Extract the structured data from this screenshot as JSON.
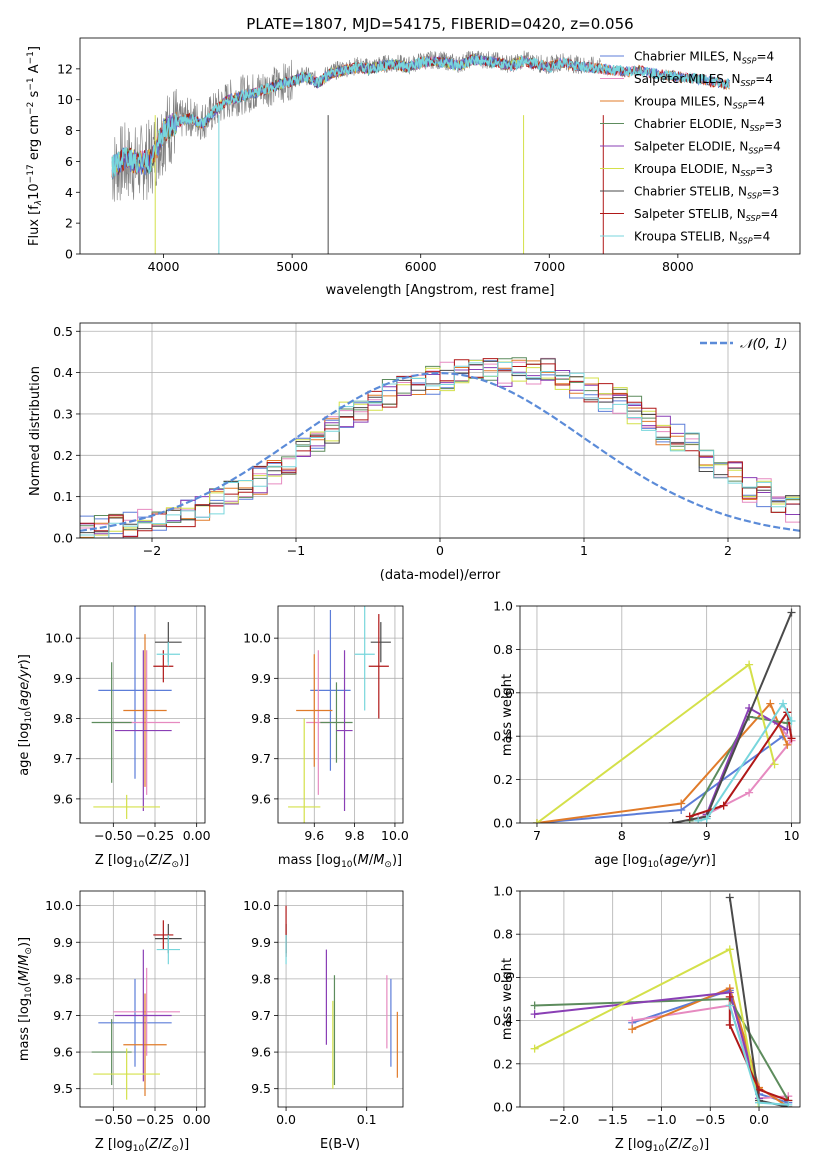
{
  "figure_title": "PLATE=1807, MJD=54175, FIBERID=0420, z=0.056",
  "model_colors": {
    "Chabrier MILES": "#5c7dd8",
    "Salpeter MILES": "#e68ac0",
    "Kroupa MILES": "#e07b2a",
    "Chabrier ELODIE": "#5d8c5d",
    "Salpeter ELODIE": "#8a3fb5",
    "Kroupa ELODIE": "#d4e04a",
    "Chabrier STELIB": "#4a4a4a",
    "Salpeter STELIB": "#b01818",
    "Kroupa STELIB": "#78d6dc"
  },
  "chart_data": [
    {
      "id": "spectrum",
      "type": "line",
      "xlabel": "wavelength [Angstrom, rest frame]",
      "ylabel": "Flux [f_λ10^-17 erg cm^-2 s^-1 A^-1]",
      "xlim": [
        3350,
        8950
      ],
      "ylim": [
        0,
        14
      ],
      "xticks": [
        4000,
        5000,
        6000,
        7000,
        8000
      ],
      "yticks": [
        0,
        2,
        4,
        6,
        8,
        10,
        12
      ],
      "grid": false,
      "legend_position": "right",
      "legend": [
        "Chabrier MILES, N_SSP=4",
        "Salpeter MILES, N_SSP=4",
        "Kroupa MILES, N_SSP=4",
        "Chabrier ELODIE, N_SSP=3",
        "Salpeter ELODIE, N_SSP=4",
        "Kroupa ELODIE, N_SSP=3",
        "Chabrier STELIB, N_SSP=3",
        "Salpeter STELIB, N_SSP=4",
        "Kroupa STELIB, N_SSP=4"
      ],
      "observed_spectrum": {
        "color": "#808080",
        "wavelength": [
          3600,
          3700,
          3800,
          3900,
          4000,
          4100,
          4200,
          4300,
          4400,
          4500,
          4600,
          4700,
          4800,
          4900,
          5000,
          5100,
          5200,
          5300,
          5400,
          5500,
          5600,
          5700,
          5800,
          5900,
          6000,
          6100,
          6200,
          6300,
          6400,
          6500,
          6600,
          6700,
          6800,
          6900,
          7000,
          7100,
          7200,
          7300,
          7400
        ],
        "flux": [
          5.5,
          6.0,
          5.8,
          6.2,
          7.8,
          8.6,
          8.9,
          8.6,
          9.3,
          10.0,
          10.3,
          10.5,
          10.8,
          11.0,
          11.3,
          11.6,
          11.2,
          11.8,
          12.0,
          12.2,
          12.1,
          12.3,
          12.4,
          12.2,
          12.5,
          12.6,
          12.5,
          12.3,
          12.7,
          12.6,
          12.5,
          12.3,
          12.6,
          12.4,
          12.2,
          12.5,
          12.3,
          12.2,
          12.2
        ]
      },
      "model_continuum": {
        "wavelength": [
          3600,
          3700,
          3800,
          3900,
          4000,
          4100,
          4200,
          4300,
          4400,
          4500,
          4600,
          4700,
          4800,
          4900,
          5000,
          5100,
          5200,
          5300,
          5400,
          5500,
          5600,
          5700,
          5800,
          5900,
          6000,
          6100,
          6200,
          6300,
          6400,
          6500,
          6600,
          6700,
          6800,
          6900,
          7000,
          7100,
          7200,
          7300,
          7400,
          7500,
          7600,
          7700,
          7800,
          7900,
          8000,
          8100,
          8200,
          8300,
          8400
        ],
        "flux": [
          5.6,
          6.2,
          5.9,
          6.0,
          8.0,
          8.5,
          8.8,
          8.4,
          9.3,
          10.0,
          10.2,
          10.4,
          10.7,
          11.0,
          11.2,
          11.5,
          11.1,
          11.7,
          11.9,
          12.1,
          12.0,
          12.2,
          12.3,
          12.1,
          12.4,
          12.5,
          12.4,
          12.2,
          12.6,
          12.5,
          12.4,
          12.2,
          12.5,
          12.3,
          12.1,
          12.4,
          12.2,
          12.1,
          12.0,
          11.9,
          11.8,
          11.9,
          11.7,
          11.6,
          11.5,
          11.4,
          11.3,
          11.1,
          11.0
        ]
      }
    },
    {
      "id": "residuals",
      "type": "line",
      "xlabel": "(data-model)/error",
      "ylabel": "Normed distribution",
      "xlim": [
        -2.5,
        2.5
      ],
      "ylim": [
        0,
        0.52
      ],
      "xticks": [
        -2,
        -1,
        0,
        1,
        2
      ],
      "yticks": [
        0.0,
        0.1,
        0.2,
        0.3,
        0.4,
        0.5
      ],
      "grid": true,
      "legend_position": "top-right",
      "legend": [
        "𝒩(0, 1)"
      ],
      "reference_curve": "normal(0,1) density, dashed #5b8bd8",
      "bin_width": 0.1,
      "bin_start": -2.5,
      "histogram_approx": [
        0.02,
        0.02,
        0.03,
        0.03,
        0.04,
        0.05,
        0.05,
        0.06,
        0.07,
        0.09,
        0.11,
        0.12,
        0.14,
        0.16,
        0.18,
        0.21,
        0.24,
        0.26,
        0.3,
        0.31,
        0.33,
        0.35,
        0.36,
        0.37,
        0.38,
        0.39,
        0.4,
        0.41,
        0.41,
        0.4,
        0.41,
        0.4,
        0.4,
        0.38,
        0.37,
        0.36,
        0.34,
        0.33,
        0.31,
        0.29,
        0.26,
        0.24,
        0.22,
        0.19,
        0.17,
        0.15,
        0.12,
        0.11,
        0.09,
        0.07
      ]
    },
    {
      "id": "age_vs_Z",
      "type": "scatter",
      "xlabel": "Z [log10(Z/Z⊙)]",
      "ylabel": "age  [log10(age/yr)]",
      "xlim": [
        -0.7,
        0.05
      ],
      "ylim": [
        9.54,
        10.08
      ],
      "xticks": [
        -0.5,
        -0.25,
        0.0
      ],
      "yticks": [
        9.6,
        9.7,
        9.8,
        9.9,
        10.0
      ],
      "grid": true,
      "points": [
        {
          "model": "Chabrier MILES",
          "x": -0.37,
          "y": 9.87,
          "xerr": 0.22,
          "yerr": 0.22
        },
        {
          "model": "Salpeter MILES",
          "x": -0.3,
          "y": 9.79,
          "xerr": 0.2,
          "yerr": 0.18
        },
        {
          "model": "Kroupa MILES",
          "x": -0.31,
          "y": 9.82,
          "xerr": 0.13,
          "yerr": 0.19
        },
        {
          "model": "Chabrier ELODIE",
          "x": -0.51,
          "y": 9.79,
          "xerr": 0.12,
          "yerr": 0.15
        },
        {
          "model": "Salpeter ELODIE",
          "x": -0.32,
          "y": 9.77,
          "xerr": 0.17,
          "yerr": 0.2
        },
        {
          "model": "Kroupa ELODIE",
          "x": -0.42,
          "y": 9.58,
          "xerr": 0.2,
          "yerr": 0.03
        },
        {
          "model": "Chabrier STELIB",
          "x": -0.17,
          "y": 9.99,
          "xerr": 0.08,
          "yerr": 0.05
        },
        {
          "model": "Salpeter STELIB",
          "x": -0.2,
          "y": 9.93,
          "xerr": 0.06,
          "yerr": 0.04
        },
        {
          "model": "Kroupa STELIB",
          "x": -0.17,
          "y": 9.96,
          "xerr": 0.07,
          "yerr": 0.03
        }
      ]
    },
    {
      "id": "age_vs_mass",
      "type": "scatter",
      "xlabel": "mass [log10(M/M⊙)]",
      "ylabel": "",
      "xlim": [
        9.42,
        10.04
      ],
      "ylim": [
        9.54,
        10.08
      ],
      "xticks": [
        9.6,
        9.8,
        10.0
      ],
      "yticks": [
        9.6,
        9.7,
        9.8,
        9.9,
        10.0
      ],
      "grid": true,
      "points": [
        {
          "model": "Chabrier MILES",
          "x": 9.68,
          "y": 9.87,
          "xerr": 0.1,
          "yerr": 0.2
        },
        {
          "model": "Salpeter MILES",
          "x": 9.62,
          "y": 9.79,
          "xerr": 0.06,
          "yerr": 0.18
        },
        {
          "model": "Kroupa MILES",
          "x": 9.6,
          "y": 9.82,
          "xerr": 0.09,
          "yerr": 0.14
        },
        {
          "model": "Chabrier ELODIE",
          "x": 9.71,
          "y": 9.79,
          "xerr": 0.08,
          "yerr": 0.1
        },
        {
          "model": "Salpeter ELODIE",
          "x": 9.75,
          "y": 9.77,
          "xerr": 0.04,
          "yerr": 0.2
        },
        {
          "model": "Kroupa ELODIE",
          "x": 9.55,
          "y": 9.58,
          "xerr": 0.08,
          "yerr": 0.22
        },
        {
          "model": "Chabrier STELIB",
          "x": 9.93,
          "y": 9.99,
          "xerr": 0.05,
          "yerr": 0.05
        },
        {
          "model": "Salpeter STELIB",
          "x": 9.92,
          "y": 9.93,
          "xerr": 0.05,
          "yerr": 0.13
        },
        {
          "model": "Kroupa STELIB",
          "x": 9.85,
          "y": 9.96,
          "xerr": 0.05,
          "yerr": 0.14
        }
      ]
    },
    {
      "id": "massweight_vs_age",
      "type": "line",
      "xlabel": "age  [log10(age/yr)]",
      "ylabel": "mass weight",
      "xlim": [
        6.8,
        10.1
      ],
      "ylim": [
        0.0,
        1.0
      ],
      "xticks": [
        7,
        8,
        9,
        10
      ],
      "yticks": [
        0.0,
        0.2,
        0.4,
        0.6,
        0.8,
        1.0
      ],
      "grid": true,
      "series": [
        {
          "model": "Chabrier MILES",
          "x": [
            7.0,
            8.7,
            9.9
          ],
          "y": [
            0.0,
            0.06,
            0.4
          ]
        },
        {
          "model": "Salpeter MILES",
          "x": [
            8.9,
            9.5,
            10.0,
            9.8
          ],
          "y": [
            0.02,
            0.14,
            0.38,
            0.47
          ]
        },
        {
          "model": "Kroupa MILES",
          "x": [
            7.0,
            8.7,
            9.75,
            9.95
          ],
          "y": [
            0.0,
            0.09,
            0.55,
            0.36
          ]
        },
        {
          "model": "Chabrier ELODIE",
          "x": [
            8.8,
            9.5,
            9.95
          ],
          "y": [
            0.01,
            0.49,
            0.46
          ]
        },
        {
          "model": "Salpeter ELODIE",
          "x": [
            9.0,
            9.5,
            9.95
          ],
          "y": [
            0.04,
            0.53,
            0.43
          ]
        },
        {
          "model": "Kroupa ELODIE",
          "x": [
            7.0,
            9.5,
            9.8
          ],
          "y": [
            0.0,
            0.73,
            0.27
          ]
        },
        {
          "model": "Chabrier STELIB",
          "x": [
            8.6,
            9.0,
            10.0
          ],
          "y": [
            0.0,
            0.03,
            0.97
          ]
        },
        {
          "model": "Salpeter STELIB",
          "x": [
            8.8,
            9.2,
            9.95,
            10.0
          ],
          "y": [
            0.03,
            0.08,
            0.51,
            0.39
          ]
        },
        {
          "model": "Kroupa STELIB",
          "x": [
            8.9,
            9.0,
            9.9,
            10.0
          ],
          "y": [
            0.01,
            0.02,
            0.55,
            0.47
          ]
        }
      ]
    },
    {
      "id": "mass_vs_Z",
      "type": "scatter",
      "xlabel": "Z [log10(Z/Z⊙)]",
      "ylabel": "mass [log10(M/M⊙)]",
      "xlim": [
        -0.7,
        0.05
      ],
      "ylim": [
        9.45,
        10.04
      ],
      "xticks": [
        -0.5,
        -0.25,
        0.0
      ],
      "yticks": [
        9.5,
        9.6,
        9.7,
        9.8,
        9.9,
        10.0
      ],
      "grid": true,
      "points": [
        {
          "model": "Chabrier MILES",
          "x": -0.37,
          "y": 9.68,
          "xerr": 0.22,
          "yerr": 0.12
        },
        {
          "model": "Salpeter MILES",
          "x": -0.3,
          "y": 9.71,
          "xerr": 0.2,
          "yerr": 0.12
        },
        {
          "model": "Kroupa MILES",
          "x": -0.31,
          "y": 9.62,
          "xerr": 0.13,
          "yerr": 0.14
        },
        {
          "model": "Chabrier ELODIE",
          "x": -0.51,
          "y": 9.6,
          "xerr": 0.12,
          "yerr": 0.09
        },
        {
          "model": "Salpeter ELODIE",
          "x": -0.32,
          "y": 9.7,
          "xerr": 0.17,
          "yerr": 0.18
        },
        {
          "model": "Kroupa ELODIE",
          "x": -0.42,
          "y": 9.54,
          "xerr": 0.2,
          "yerr": 0.07
        },
        {
          "model": "Chabrier STELIB",
          "x": -0.17,
          "y": 9.91,
          "xerr": 0.08,
          "yerr": 0.04
        },
        {
          "model": "Salpeter STELIB",
          "x": -0.2,
          "y": 9.92,
          "xerr": 0.06,
          "yerr": 0.04
        },
        {
          "model": "Kroupa STELIB",
          "x": -0.17,
          "y": 9.88,
          "xerr": 0.07,
          "yerr": 0.04
        }
      ]
    },
    {
      "id": "mass_vs_EBV",
      "type": "scatter",
      "xlabel": "E(B-V)",
      "ylabel": "",
      "xlim": [
        -0.01,
        0.145
      ],
      "ylim": [
        9.45,
        10.04
      ],
      "xticks": [
        0.0,
        0.1
      ],
      "yticks": [
        9.5,
        9.6,
        9.7,
        9.8,
        9.9,
        10.0
      ],
      "grid": true,
      "points": [
        {
          "model": "Chabrier MILES",
          "x": 0.13,
          "y": 9.68,
          "xerr": 0,
          "yerr": 0.12
        },
        {
          "model": "Salpeter MILES",
          "x": 0.125,
          "y": 9.71,
          "xerr": 0,
          "yerr": 0.1
        },
        {
          "model": "Kroupa MILES",
          "x": 0.138,
          "y": 9.62,
          "xerr": 0,
          "yerr": 0.09
        },
        {
          "model": "Chabrier ELODIE",
          "x": 0.06,
          "y": 9.66,
          "xerr": 0,
          "yerr": 0.15
        },
        {
          "model": "Salpeter ELODIE",
          "x": 0.05,
          "y": 9.75,
          "xerr": 0,
          "yerr": 0.13
        },
        {
          "model": "Kroupa ELODIE",
          "x": 0.058,
          "y": 9.62,
          "xerr": 0,
          "yerr": 0.12
        },
        {
          "model": "Chabrier STELIB",
          "x": 0.0,
          "y": 9.91,
          "xerr": 0,
          "yerr": 0.04
        },
        {
          "model": "Salpeter STELIB",
          "x": 0.0,
          "y": 9.93,
          "xerr": 0,
          "yerr": 0.07
        },
        {
          "model": "Kroupa STELIB",
          "x": 0.0,
          "y": 9.88,
          "xerr": 0,
          "yerr": 0.04
        }
      ]
    },
    {
      "id": "massweight_vs_Z",
      "type": "line",
      "xlabel": "Z [log10(Z/Z⊙)]",
      "ylabel": "mass weight",
      "xlim": [
        -2.45,
        0.42
      ],
      "ylim": [
        0.0,
        1.0
      ],
      "xticks": [
        -2.0,
        -1.5,
        -1.0,
        -0.5,
        0.0
      ],
      "yticks": [
        0.0,
        0.2,
        0.4,
        0.6,
        0.8,
        1.0
      ],
      "grid": true,
      "series": [
        {
          "model": "Chabrier MILES",
          "x": [
            -1.3,
            -0.3,
            0.0,
            0.3
          ],
          "y": [
            0.39,
            0.54,
            0.06,
            0.02
          ]
        },
        {
          "model": "Salpeter MILES",
          "x": [
            -1.3,
            -0.3,
            0.0,
            0.3
          ],
          "y": [
            0.4,
            0.47,
            0.04,
            0.05
          ]
        },
        {
          "model": "Kroupa MILES",
          "x": [
            -1.3,
            -0.3,
            0.0,
            0.3
          ],
          "y": [
            0.36,
            0.55,
            0.09,
            0.0
          ]
        },
        {
          "model": "Chabrier ELODIE",
          "x": [
            -2.3,
            -0.3,
            0.3
          ],
          "y": [
            0.47,
            0.5,
            0.03
          ]
        },
        {
          "model": "Salpeter ELODIE",
          "x": [
            -2.3,
            -0.3,
            0.0
          ],
          "y": [
            0.43,
            0.53,
            0.04
          ]
        },
        {
          "model": "Kroupa ELODIE",
          "x": [
            -2.3,
            -0.3,
            0.0
          ],
          "y": [
            0.27,
            0.73,
            0.0
          ]
        },
        {
          "model": "Chabrier STELIB",
          "x": [
            -0.3,
            0.0,
            0.3
          ],
          "y": [
            0.97,
            0.03,
            0.0
          ]
        },
        {
          "model": "Salpeter STELIB",
          "x": [
            -0.3,
            -0.3,
            0.0,
            0.3
          ],
          "y": [
            0.51,
            0.38,
            0.08,
            0.03
          ]
        },
        {
          "model": "Kroupa STELIB",
          "x": [
            -0.3,
            0.0,
            0.3
          ],
          "y": [
            0.47,
            0.02,
            0.01
          ]
        }
      ]
    }
  ],
  "texts": {
    "spectrum_xlabel": "wavelength [Angstrom, rest frame]",
    "resid_xlabel": "(data-model)/error",
    "resid_ylabel": "Normed distribution",
    "resid_legend": "𝒩(0, 1)",
    "mass_weight": "mass weight",
    "ebv": "E(B-V)"
  }
}
